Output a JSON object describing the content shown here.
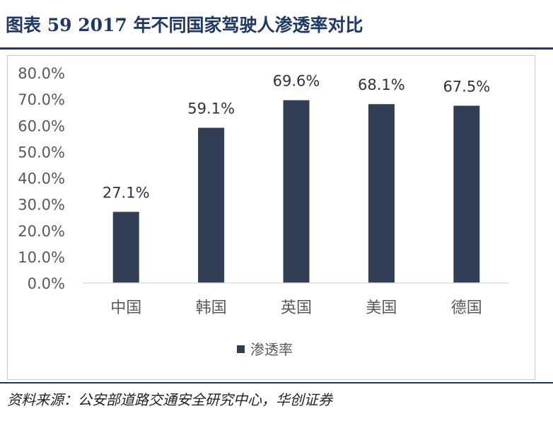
{
  "figure": {
    "title": "图表 59    2017 年不同国家驾驶人渗透率对比",
    "source": "资料来源：公安部道路交通安全研究中心，华创证券"
  },
  "colors": {
    "bar": "#323e53",
    "title": "#1f3864",
    "axis": "#d9d9d9",
    "text": "#595959"
  },
  "chart_data": {
    "type": "bar",
    "title": "",
    "xlabel": "",
    "ylabel": "",
    "categories": [
      "中国",
      "韩国",
      "英国",
      "美国",
      "德国"
    ],
    "series": [
      {
        "name": "渗透率",
        "values": [
          27.1,
          59.1,
          69.6,
          68.1,
          67.5
        ]
      }
    ],
    "data_labels": [
      "27.1%",
      "59.1%",
      "69.6%",
      "68.1%",
      "67.5%"
    ],
    "yticks": [
      "0.0%",
      "10.0%",
      "20.0%",
      "30.0%",
      "40.0%",
      "50.0%",
      "60.0%",
      "70.0%",
      "80.0%"
    ],
    "ylim": [
      0,
      80
    ],
    "grid": false,
    "legend": "bottom"
  }
}
